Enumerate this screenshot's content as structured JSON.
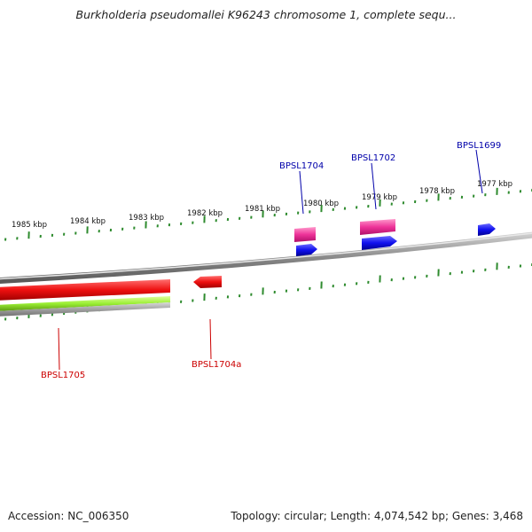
{
  "title": "Burkholderia pseudomallei K96243 chromosome 1, complete sequ...",
  "footer": {
    "accession": "Accession: NC_006350",
    "summary": "Topology: circular; Length: 4,074,542 bp; Genes: 3,468"
  },
  "scale_labels": [
    "1985 kbp",
    "1984 kbp",
    "1983 kbp",
    "1982 kbp",
    "1981 kbp",
    "1980 kbp",
    "1979 kbp",
    "1978 kbp",
    "1977 kbp"
  ],
  "genes": {
    "top": [
      "BPSL1704",
      "BPSL1702",
      "BPSL1699"
    ],
    "bottom": [
      "BPSL1705",
      "BPSL1704a"
    ]
  },
  "colors": {
    "backbone": "#7f7f7f",
    "tick": "#2e8b2e",
    "cds_forward": "#1010ee",
    "cds_reverse": "#ee1010",
    "rna_forward": "#ee3399",
    "rna_reverse": "#99ee33",
    "label_forward": "#0000aa",
    "label_reverse": "#cc0000"
  }
}
